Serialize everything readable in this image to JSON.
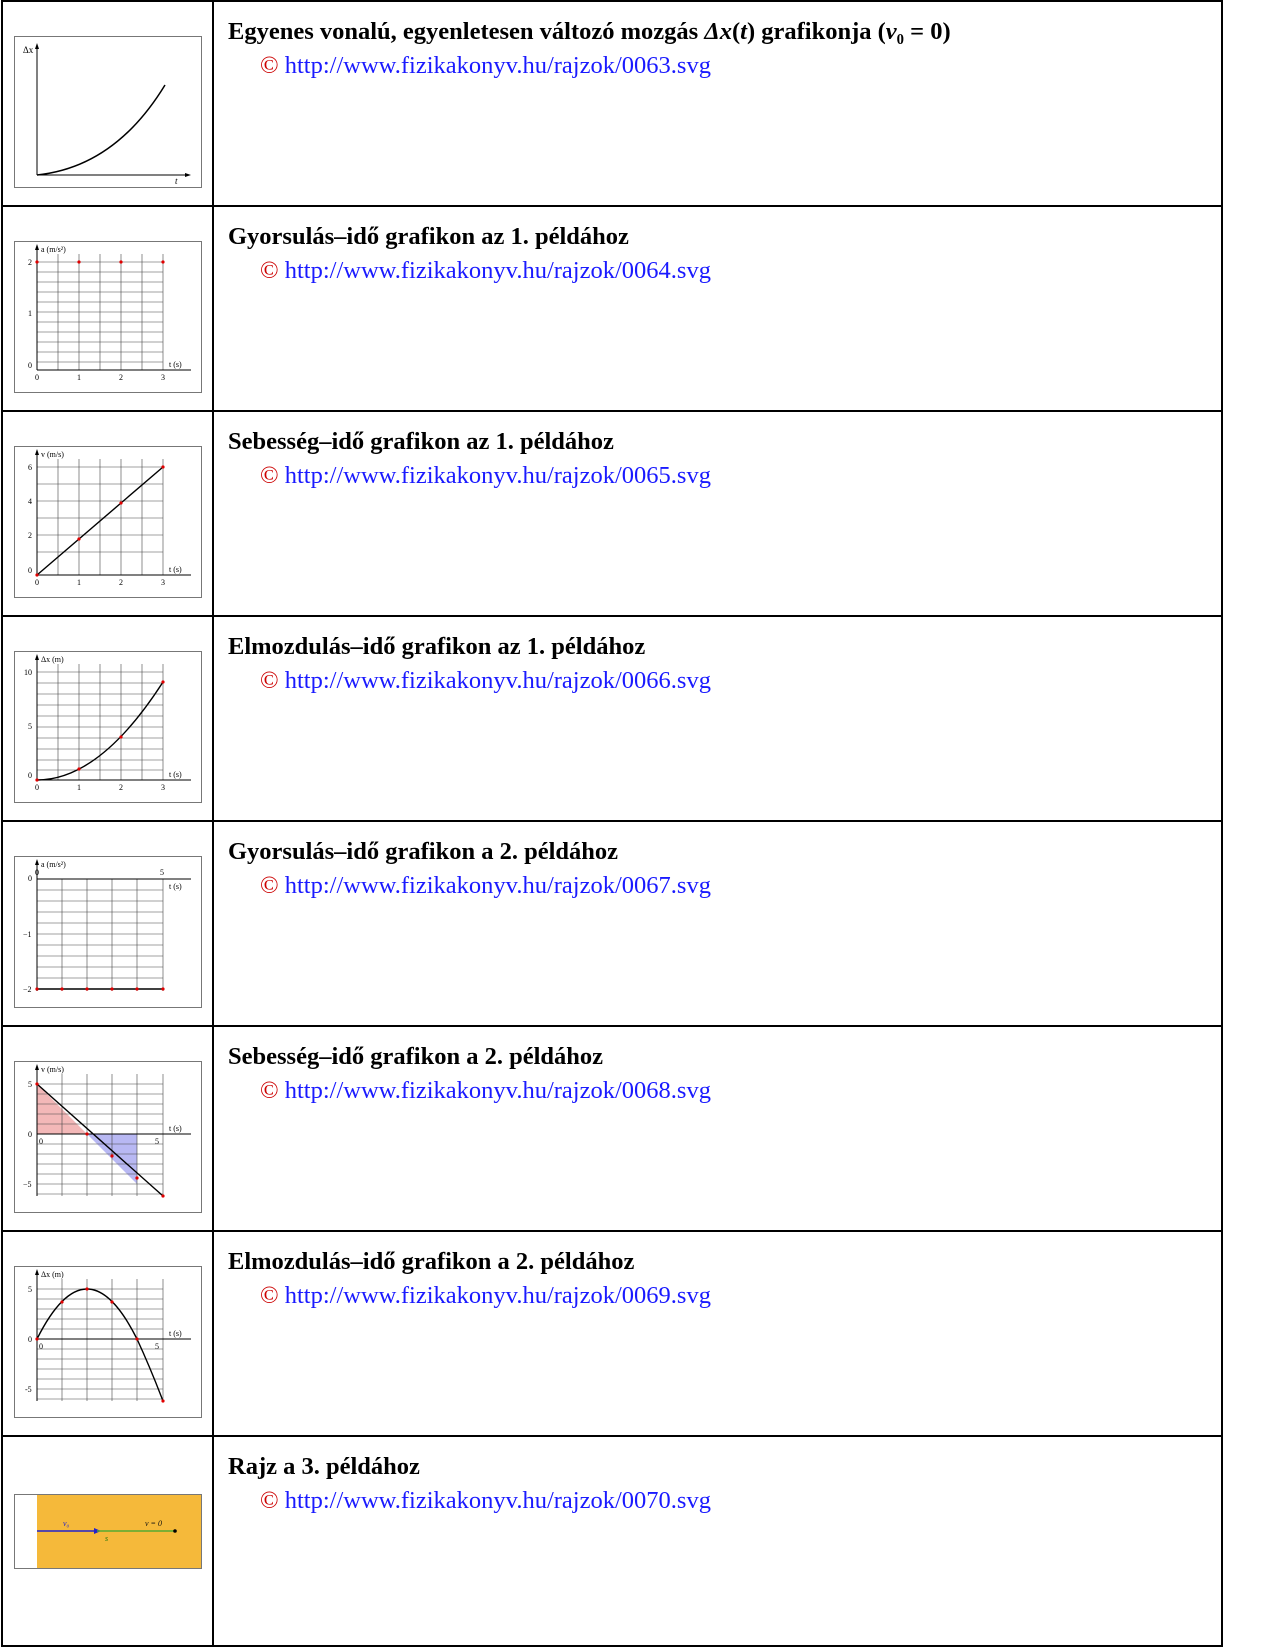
{
  "rows": [
    {
      "title_html": "Egyenes vonalú, egyenletesen változó mozgás <i>Δx</i>(<i>t</i>) grafikonja (<i>v</i>₀ = 0)",
      "copyright": "©",
      "url": "http://www.fizikakonyv.hu/rajzok/0063.svg",
      "thumb": {
        "ylabel": "Δx",
        "xlabel": "t"
      }
    },
    {
      "title_html": "Gyorsulás–idő grafikon az 1. példához",
      "copyright": "©",
      "url": "http://www.fizikakonyv.hu/rajzok/0064.svg",
      "thumb": {
        "ylabel": "a (m/s²)",
        "xlabel": "t (s)",
        "yticks": [
          "2",
          "1",
          "0"
        ],
        "xticks": [
          "0",
          "1",
          "2",
          "3"
        ]
      }
    },
    {
      "title_html": "Sebesség–idő grafikon az 1. példához",
      "copyright": "©",
      "url": "http://www.fizikakonyv.hu/rajzok/0065.svg",
      "thumb": {
        "ylabel": "v (m/s)",
        "xlabel": "t (s)",
        "yticks": [
          "6",
          "4",
          "2",
          "0"
        ],
        "xticks": [
          "0",
          "1",
          "2",
          "3"
        ]
      }
    },
    {
      "title_html": "Elmozdulás–idő grafikon az 1. példához",
      "copyright": "©",
      "url": "http://www.fizikakonyv.hu/rajzok/0066.svg",
      "thumb": {
        "ylabel": "Δx (m)",
        "xlabel": "t (s)",
        "yticks": [
          "10",
          "5",
          "0"
        ],
        "xticks": [
          "0",
          "1",
          "2",
          "3"
        ]
      }
    },
    {
      "title_html": "Gyorsulás–idő grafikon a 2. példához",
      "copyright": "©",
      "url": "http://www.fizikakonyv.hu/rajzok/0067.svg",
      "thumb": {
        "ylabel": "a (m/s²)",
        "xlabel": "t (s)",
        "yticks": [
          "0",
          "−1",
          "−2"
        ],
        "xticks": [
          "0",
          "5"
        ]
      }
    },
    {
      "title_html": "Sebesség–idő grafikon a 2. példához",
      "copyright": "©",
      "url": "http://www.fizikakonyv.hu/rajzok/0068.svg",
      "thumb": {
        "ylabel": "v (m/s)",
        "xlabel": "t (s)",
        "yticks": [
          "5",
          "0",
          "−5"
        ],
        "xticks": [
          "0",
          "5"
        ]
      }
    },
    {
      "title_html": "Elmozdulás–idő grafikon a 2. példához",
      "copyright": "©",
      "url": "http://www.fizikakonyv.hu/rajzok/0069.svg",
      "thumb": {
        "ylabel": "Δx (m)",
        "xlabel": "t (s)",
        "yticks": [
          "5",
          "0",
          "-5"
        ],
        "xticks": [
          "0",
          "5"
        ]
      }
    },
    {
      "title_html": "Rajz a 3. példához",
      "copyright": "©",
      "url": "http://www.fizikakonyv.hu/rajzok/0070.svg",
      "thumb": {
        "v0": "v₀",
        "s": "s",
        "v_end": "v = 0"
      }
    }
  ],
  "colors": {
    "link": "#1a1aff",
    "copyright": "#cc0000",
    "marker": "#e00000",
    "pos_area": "#f3b8b8",
    "neg_area": "#b8b8f3",
    "track": "#f5b93a"
  }
}
